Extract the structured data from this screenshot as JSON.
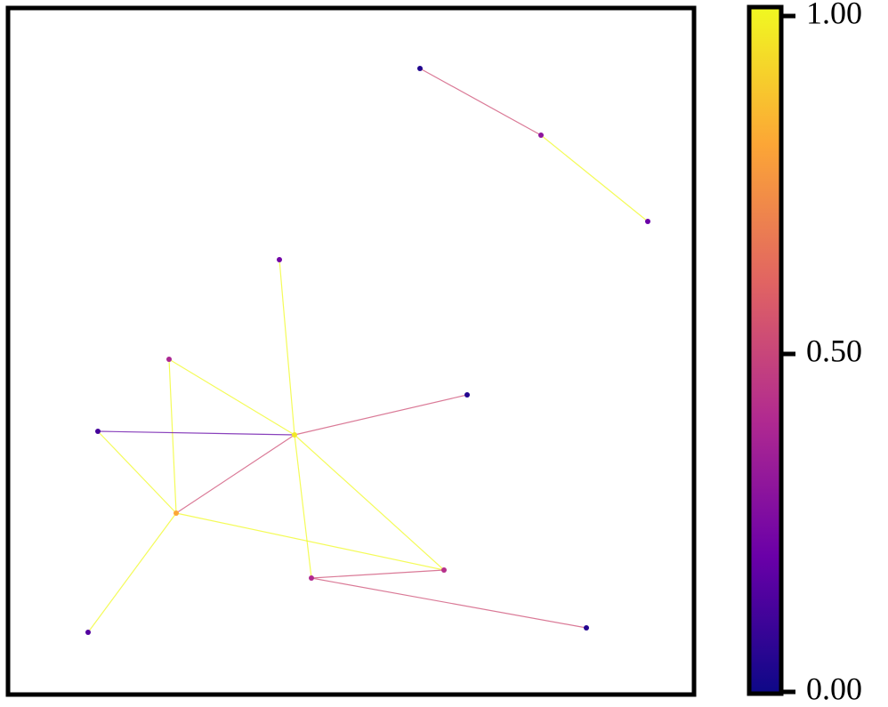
{
  "graph": {
    "colormap": "plasma",
    "colormap_stops": [
      "#0d0887",
      "#6a00a8",
      "#b12a90",
      "#e16462",
      "#fca636",
      "#f0f921"
    ],
    "value_range": [
      0,
      1
    ],
    "nodes": [
      {
        "id": "n1",
        "value": 0.04
      },
      {
        "id": "n2",
        "value": 0.3
      },
      {
        "id": "n3",
        "value": 0.2
      },
      {
        "id": "n4",
        "value": 0.22
      },
      {
        "id": "n5",
        "value": 0.38
      },
      {
        "id": "n6",
        "value": 0.05
      },
      {
        "id": "n7",
        "value": 0.12
      },
      {
        "id": "n8",
        "value": 0.96
      },
      {
        "id": "n9",
        "value": 0.8
      },
      {
        "id": "n10",
        "value": 0.15
      },
      {
        "id": "n11",
        "value": 0.42
      },
      {
        "id": "n12",
        "value": 0.4
      },
      {
        "id": "n13",
        "value": 0.05
      }
    ],
    "edges": [
      {
        "source": "n1",
        "target": "n2",
        "value": 0.52
      },
      {
        "source": "n2",
        "target": "n3",
        "value": 1.0
      },
      {
        "source": "n4",
        "target": "n8",
        "value": 1.0
      },
      {
        "source": "n5",
        "target": "n8",
        "value": 1.0
      },
      {
        "source": "n5",
        "target": "n9",
        "value": 1.0
      },
      {
        "source": "n7",
        "target": "n8",
        "value": 0.18
      },
      {
        "source": "n7",
        "target": "n9",
        "value": 1.0
      },
      {
        "source": "n8",
        "target": "n6",
        "value": 0.52
      },
      {
        "source": "n8",
        "target": "n9",
        "value": 0.52
      },
      {
        "source": "n8",
        "target": "n11",
        "value": 1.0
      },
      {
        "source": "n8",
        "target": "n12",
        "value": 1.0
      },
      {
        "source": "n9",
        "target": "n10",
        "value": 1.0
      },
      {
        "source": "n9",
        "target": "n11",
        "value": 1.0
      },
      {
        "source": "n11",
        "target": "n12",
        "value": 0.52
      },
      {
        "source": "n12",
        "target": "n13",
        "value": 0.52
      }
    ]
  },
  "colorbar": {
    "ticks": [
      {
        "value": 1.0,
        "label": "1.00"
      },
      {
        "value": 0.5,
        "label": "0.50"
      },
      {
        "value": 0.0,
        "label": "0.00"
      }
    ]
  }
}
